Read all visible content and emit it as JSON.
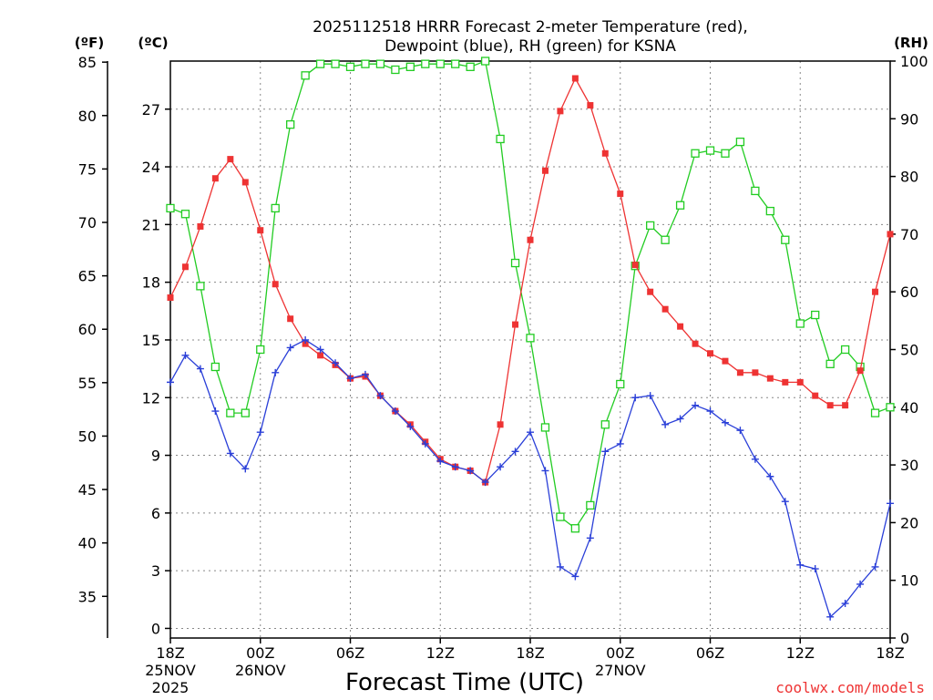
{
  "chart_data": {
    "type": "line",
    "title_line1": "2025112518 HRRR Forecast 2-meter Temperature (red),",
    "title_line2": "Dewpoint (blue), RH (green) for KSNA",
    "xlabel": "Forecast Time (UTC)",
    "credit": "coolwx.com/models",
    "unit_left_f": "(ºF)",
    "unit_left_c": "(ºC)",
    "unit_right_rh": "(RH)",
    "x_hours": [
      0,
      1,
      2,
      3,
      4,
      5,
      6,
      7,
      8,
      9,
      10,
      11,
      12,
      13,
      14,
      15,
      16,
      17,
      18,
      19,
      20,
      21,
      22,
      23,
      24,
      25,
      26,
      27,
      28,
      29,
      30,
      31,
      32,
      33,
      34,
      35,
      36,
      37,
      38,
      39,
      40,
      41,
      42,
      43,
      44,
      45,
      46,
      47,
      48
    ],
    "x_range": [
      0,
      48
    ],
    "x_ticks": [
      {
        "hour": 0,
        "label": "18Z",
        "sub1": "25NOV",
        "sub2": "2025"
      },
      {
        "hour": 6,
        "label": "00Z",
        "sub1": "26NOV",
        "sub2": ""
      },
      {
        "hour": 12,
        "label": "06Z",
        "sub1": "",
        "sub2": ""
      },
      {
        "hour": 18,
        "label": "12Z",
        "sub1": "",
        "sub2": ""
      },
      {
        "hour": 24,
        "label": "18Z",
        "sub1": "",
        "sub2": ""
      },
      {
        "hour": 30,
        "label": "00Z",
        "sub1": "27NOV",
        "sub2": ""
      },
      {
        "hour": 36,
        "label": "06Z",
        "sub1": "",
        "sub2": ""
      },
      {
        "hour": 42,
        "label": "12Z",
        "sub1": "",
        "sub2": ""
      },
      {
        "hour": 48,
        "label": "18Z",
        "sub1": "",
        "sub2": ""
      }
    ],
    "c_range": [
      -0.5,
      29.5
    ],
    "c_ticks": [
      "0",
      "3",
      "6",
      "9",
      "12",
      "15",
      "18",
      "21",
      "24",
      "27"
    ],
    "f_ticks": [
      "35",
      "40",
      "45",
      "50",
      "55",
      "60",
      "65",
      "70",
      "75",
      "80",
      "85"
    ],
    "rh_range": [
      0,
      100
    ],
    "rh_ticks": [
      "0",
      "10",
      "20",
      "30",
      "40",
      "50",
      "60",
      "70",
      "80",
      "90",
      "100"
    ],
    "series": [
      {
        "name": "Temperature",
        "color": "#ee3333",
        "marker": "square-filled",
        "units": "C",
        "values": [
          17.2,
          18.8,
          20.9,
          23.4,
          24.4,
          23.2,
          20.7,
          17.9,
          16.1,
          14.8,
          14.2,
          13.7,
          13.0,
          13.1,
          12.1,
          11.3,
          10.6,
          9.7,
          8.8,
          8.4,
          8.2,
          7.6,
          10.6,
          15.8,
          20.2,
          23.8,
          26.9,
          28.6,
          27.2,
          24.7,
          22.6,
          18.9,
          17.5,
          16.6,
          15.7,
          14.8,
          14.3,
          13.9,
          13.3,
          13.3,
          13.0,
          12.8,
          12.8,
          12.1,
          11.6,
          11.6,
          13.4,
          17.5,
          20.5
        ]
      },
      {
        "name": "Dewpoint",
        "color": "#2a3fd8",
        "marker": "plus",
        "units": "C",
        "values": [
          12.8,
          14.2,
          13.5,
          11.3,
          9.1,
          8.3,
          10.2,
          13.3,
          14.6,
          15.0,
          14.5,
          13.8,
          13.0,
          13.2,
          12.1,
          11.3,
          10.5,
          9.6,
          8.7,
          8.4,
          8.2,
          7.6,
          8.4,
          9.2,
          10.2,
          8.2,
          3.2,
          2.7,
          4.7,
          9.2,
          9.6,
          12.0,
          12.1,
          10.6,
          10.9,
          11.6,
          11.3,
          10.7,
          10.3,
          8.8,
          7.9,
          6.6,
          3.3,
          3.1,
          0.6,
          1.3,
          2.3,
          3.2,
          6.5
        ]
      },
      {
        "name": "RH",
        "color": "#22cc22",
        "marker": "square-open",
        "units": "%",
        "values": [
          74.5,
          73.5,
          61,
          47,
          39,
          39,
          50,
          74.5,
          89,
          97.5,
          99.5,
          99.5,
          99,
          99.5,
          99.5,
          98.5,
          99,
          99.5,
          99.5,
          99.5,
          99,
          100,
          86.5,
          65,
          52,
          36.5,
          21,
          19,
          23,
          37,
          44,
          64.5,
          71.5,
          69,
          75,
          84,
          84.5,
          84,
          86,
          77.5,
          74,
          69,
          54.5,
          56,
          47.5,
          50,
          47,
          39,
          40
        ]
      }
    ]
  }
}
